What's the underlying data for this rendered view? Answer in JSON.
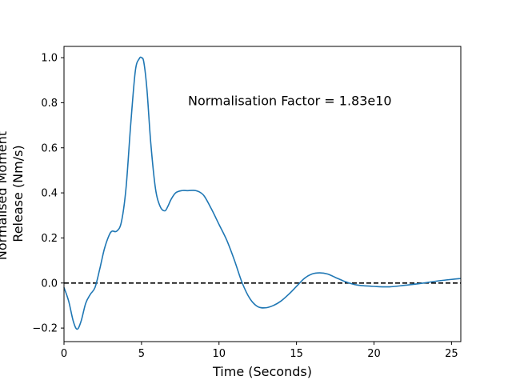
{
  "chart_data": {
    "type": "line",
    "title": "",
    "xlabel": "Time (Seconds)",
    "ylabel_lines": [
      "Normalised Moment",
      "Release (Nm/s)"
    ],
    "xlim": [
      0,
      25.6
    ],
    "ylim": [
      -0.26,
      1.05
    ],
    "x_ticks": [
      0,
      5,
      10,
      15,
      20,
      25
    ],
    "x_tick_labels": [
      "0",
      "5",
      "10",
      "15",
      "20",
      "25"
    ],
    "y_ticks": [
      -0.2,
      0.0,
      0.2,
      0.4,
      0.6,
      0.8,
      1.0
    ],
    "y_tick_labels": [
      "−0.2",
      "0.0",
      "0.2",
      "0.4",
      "0.6",
      "0.8",
      "1.0"
    ],
    "grid": false,
    "annotation": {
      "text": "Normalisation Factor = 1.83e10",
      "x": 8.0,
      "y": 0.81
    },
    "reference_line": {
      "y": 0.0,
      "style": "dashed",
      "color": "#000000"
    },
    "series": [
      {
        "color": "#1f77b4",
        "x": [
          0,
          0.3,
          0.6,
          0.85,
          1.1,
          1.4,
          1.7,
          2.0,
          2.3,
          2.6,
          2.9,
          3.1,
          3.4,
          3.7,
          4.0,
          4.3,
          4.6,
          4.85,
          5.0,
          5.15,
          5.35,
          5.6,
          5.9,
          6.2,
          6.5,
          6.7,
          6.9,
          7.2,
          7.6,
          8.0,
          8.5,
          9.0,
          9.5,
          10.0,
          10.5,
          11.0,
          11.5,
          12.0,
          12.5,
          13.0,
          13.5,
          14.0,
          14.5,
          15.0,
          15.5,
          16.0,
          16.5,
          17.0,
          17.5,
          18.0,
          18.5,
          19.0,
          20.0,
          21.0,
          22.0,
          23.0,
          24.0,
          25.0,
          25.6
        ],
        "y": [
          -0.02,
          -0.08,
          -0.17,
          -0.205,
          -0.17,
          -0.09,
          -0.05,
          -0.02,
          0.06,
          0.15,
          0.21,
          0.23,
          0.23,
          0.27,
          0.42,
          0.7,
          0.94,
          0.995,
          1.0,
          0.98,
          0.86,
          0.62,
          0.42,
          0.34,
          0.32,
          0.34,
          0.37,
          0.4,
          0.41,
          0.41,
          0.41,
          0.39,
          0.33,
          0.26,
          0.19,
          0.1,
          0.0,
          -0.07,
          -0.105,
          -0.11,
          -0.1,
          -0.08,
          -0.05,
          -0.015,
          0.02,
          0.04,
          0.045,
          0.04,
          0.025,
          0.01,
          -0.002,
          -0.01,
          -0.015,
          -0.017,
          -0.01,
          -0.002,
          0.008,
          0.016,
          0.02
        ]
      }
    ]
  }
}
